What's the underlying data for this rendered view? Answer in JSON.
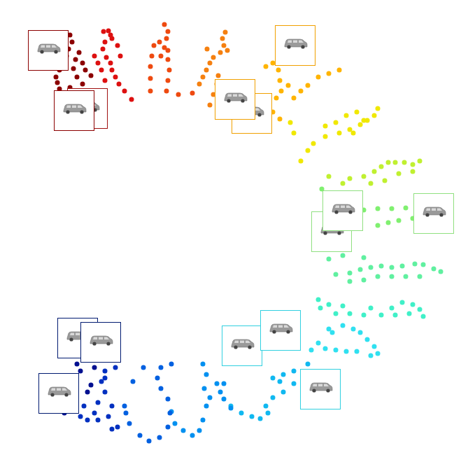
{
  "chart_data": {
    "type": "scatter",
    "xlim": [
      0,
      659
    ],
    "ylim": [
      660,
      0
    ],
    "grid": false,
    "tick_labels": false,
    "marker": "circle",
    "series": [
      {
        "color": "#8b0000",
        "x": [
          100,
          103,
          98,
          95,
          90,
          85,
          80,
          82,
          85,
          90,
          98,
          110,
          120,
          125,
          118,
          110,
          105,
          108,
          113,
          118,
          122,
          130,
          100
        ],
        "values": [
          50,
          60,
          70,
          80,
          90,
          100,
          110,
          118,
          127,
          135,
          140,
          145,
          140,
          130,
          120,
          110,
          98,
          85,
          75,
          90,
          100,
          108,
          125
        ]
      },
      {
        "color": "#dd1010",
        "x": [
          155,
          158,
          150,
          147,
          152,
          158,
          160,
          165,
          170,
          178,
          188,
          172,
          168,
          160,
          150,
          145,
          140,
          135,
          148
        ],
        "values": [
          44,
          50,
          60,
          70,
          82,
          90,
          100,
          110,
          120,
          130,
          142,
          80,
          65,
          55,
          115,
          100,
          90,
          80,
          45
        ]
      },
      {
        "color": "#ee4a10",
        "x": [
          235,
          240,
          238,
          235,
          230,
          240,
          242,
          240,
          238,
          228,
          220,
          217,
          215,
          215,
          215,
          255,
          275,
          240
        ],
        "values": [
          35,
          45,
          55,
          68,
          80,
          85,
          100,
          115,
          130,
          60,
          65,
          80,
          95,
          112,
          130,
          135,
          133,
          72
        ]
      },
      {
        "color": "#f58010",
        "x": [
          322,
          318,
          320,
          315,
          305,
          300,
          295,
          290,
          285,
          300,
          305,
          310,
          312,
          325,
          296
        ],
        "values": [
          46,
          55,
          65,
          75,
          82,
          90,
          100,
          110,
          120,
          150,
          135,
          120,
          108,
          72,
          70
        ]
      },
      {
        "color": "#ffb400",
        "x": [
          380,
          390,
          398,
          400,
          402,
          395,
          390,
          400,
          420,
          430,
          440,
          455,
          470,
          485,
          412,
          385
        ],
        "values": [
          95,
          90,
          100,
          115,
          130,
          140,
          160,
          170,
          140,
          130,
          122,
          110,
          105,
          100,
          122,
          160
        ]
      },
      {
        "color": "#f0e800",
        "x": [
          540,
          535,
          525,
          515,
          500,
          485,
          465,
          448,
          440,
          430,
          510,
          495,
          480,
          465,
          420,
          415,
          505,
          520
        ],
        "values": [
          155,
          165,
          172,
          178,
          185,
          190,
          195,
          205,
          215,
          230,
          160,
          165,
          175,
          180,
          190,
          175,
          190,
          172
        ]
      },
      {
        "color": "#c0f030",
        "x": [
          600,
          590,
          578,
          565,
          555,
          545,
          535,
          520,
          500,
          490,
          470,
          590,
          570,
          550,
          530
        ],
        "values": [
          230,
          235,
          232,
          232,
          232,
          238,
          245,
          252,
          255,
          262,
          252,
          245,
          248,
          258,
          262
        ]
      },
      {
        "color": "#80f070",
        "x": [
          540,
          560,
          580,
          600,
          540,
          555,
          570,
          590,
          480,
          500,
          520,
          460,
          470,
          490
        ],
        "values": [
          298,
          298,
          297,
          300,
          322,
          318,
          315,
          312,
          298,
          302,
          300,
          270,
          320,
          330
        ]
      },
      {
        "color": "#60f0a0",
        "x": [
          630,
          620,
          605,
          593,
          575,
          560,
          545,
          530,
          515,
          500,
          480,
          470,
          490,
          520,
          600,
          580,
          560,
          540,
          520,
          500
        ],
        "values": [
          388,
          384,
          378,
          377,
          380,
          382,
          380,
          382,
          385,
          390,
          392,
          370,
          365,
          368,
          395,
          395,
          395,
          395,
          400,
          402
        ]
      },
      {
        "color": "#40f0c8",
        "x": [
          605,
          600,
          590,
          575,
          560,
          545,
          520,
          500,
          480,
          458,
          455,
          470,
          490,
          530,
          565,
          585
        ],
        "values": [
          452,
          442,
          435,
          432,
          440,
          450,
          450,
          448,
          448,
          440,
          428,
          435,
          437,
          440,
          450,
          448
        ]
      },
      {
        "color": "#30e0f0",
        "x": [
          540,
          535,
          525,
          515,
          505,
          490,
          470,
          455,
          445,
          465,
          480,
          495,
          510,
          530,
          475
        ],
        "values": [
          505,
          495,
          485,
          475,
          470,
          465,
          470,
          490,
          500,
          498,
          500,
          502,
          502,
          508,
          475
        ]
      },
      {
        "color": "#10b8f0",
        "x": [
          440,
          420,
          405,
          390,
          400,
          420,
          405,
          390,
          380,
          383,
          372,
          360,
          345,
          330,
          345,
          360
        ],
        "values": [
          520,
          530,
          535,
          540,
          545,
          548,
          560,
          568,
          580,
          590,
          598,
          595,
          590,
          580,
          500,
          510
        ]
      },
      {
        "color": "#0090f0",
        "x": [
          320,
          315,
          320,
          330,
          310,
          290,
          295,
          292,
          295,
          290,
          285,
          275,
          262,
          250,
          245,
          300
        ],
        "values": [
          548,
          560,
          570,
          583,
          548,
          520,
          535,
          555,
          580,
          600,
          615,
          622,
          615,
          605,
          588,
          568
        ]
      },
      {
        "color": "#0060e0",
        "x": [
          245,
          230,
          225,
          230,
          240,
          243,
          240,
          228,
          213,
          200,
          185,
          180,
          205,
          190,
          178
        ],
        "values": [
          520,
          525,
          540,
          555,
          570,
          590,
          610,
          625,
          630,
          622,
          605,
          590,
          525,
          545,
          580
        ]
      },
      {
        "color": "#0030c0",
        "x": [
          165,
          150,
          145,
          150,
          160,
          155,
          160,
          168,
          140,
          135,
          120,
          115,
          125,
          140,
          150
        ],
        "values": [
          525,
          530,
          545,
          560,
          580,
          595,
          613,
          610,
          575,
          590,
          580,
          595,
          600,
          600,
          540
        ]
      },
      {
        "color": "#001090",
        "x": [
          120,
          110,
          100,
          95,
          92,
          115,
          130,
          125,
          135
        ],
        "values": [
          510,
          520,
          540,
          565,
          590,
          530,
          550,
          560,
          525
        ]
      }
    ],
    "thumbnails": [
      {
        "x": 69,
        "y": 72,
        "color": "#8b0000"
      },
      {
        "x": 125,
        "y": 155,
        "color": "#a01010"
      },
      {
        "x": 106,
        "y": 158,
        "color": "#8b0000"
      },
      {
        "x": 422,
        "y": 65,
        "color": "#f0a000"
      },
      {
        "x": 360,
        "y": 162,
        "color": "#f0a000"
      },
      {
        "x": 336,
        "y": 142,
        "color": "#f0a000"
      },
      {
        "x": 620,
        "y": 305,
        "color": "#90e080"
      },
      {
        "x": 474,
        "y": 331,
        "color": "#90e080"
      },
      {
        "x": 490,
        "y": 301,
        "color": "#90e080"
      },
      {
        "x": 346,
        "y": 494,
        "color": "#30d0e0"
      },
      {
        "x": 401,
        "y": 472,
        "color": "#30d0e0"
      },
      {
        "x": 458,
        "y": 556,
        "color": "#30d0e0"
      },
      {
        "x": 111,
        "y": 483,
        "color": "#001a70"
      },
      {
        "x": 144,
        "y": 489,
        "color": "#001a70"
      },
      {
        "x": 84,
        "y": 562,
        "color": "#001a70"
      }
    ]
  }
}
